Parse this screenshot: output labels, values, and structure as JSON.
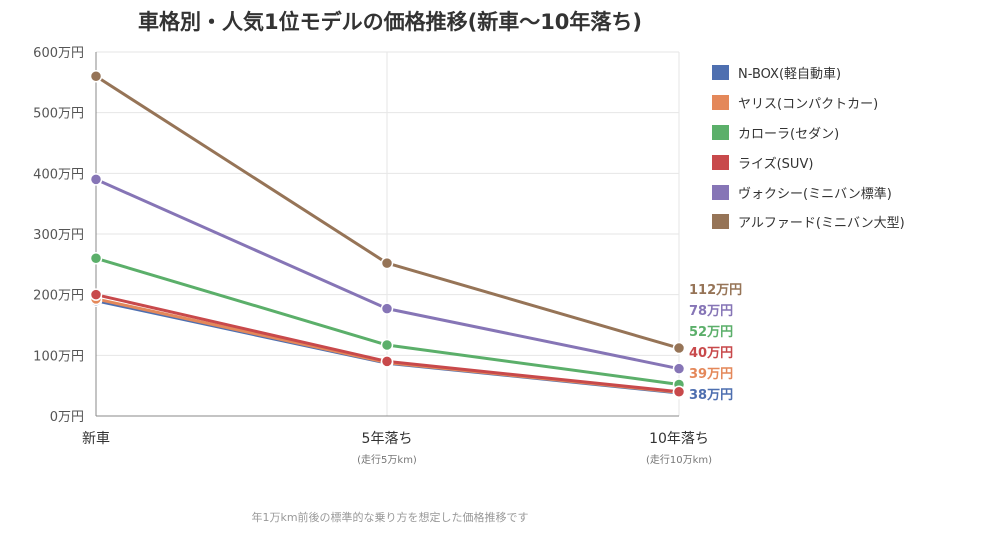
{
  "chart_data": {
    "type": "line",
    "title": "車格別・人気1位モデルの価格推移(新車〜10年落ち)",
    "categories": [
      "新車",
      "5年落ち",
      "10年落ち"
    ],
    "category_sublabels": [
      "",
      "(走行5万km)",
      "(走行10万km)"
    ],
    "ylim": [
      0,
      600
    ],
    "y_ticks": [
      {
        "value": 0,
        "label": "0万円"
      },
      {
        "value": 100,
        "label": "100万円"
      },
      {
        "value": 200,
        "label": "200万円"
      },
      {
        "value": 300,
        "label": "300万円"
      },
      {
        "value": 400,
        "label": "400万円"
      },
      {
        "value": 500,
        "label": "500万円"
      },
      {
        "value": 600,
        "label": "600万円"
      }
    ],
    "grid": true,
    "legend_position": "right",
    "series": [
      {
        "name": "N-BOX(軽自動車)",
        "color": "#4E6FB0",
        "values": [
          190,
          87,
          38
        ],
        "end_label": "38万円"
      },
      {
        "name": "ヤリス(コンパクトカー)",
        "color": "#E4885A",
        "values": [
          193,
          88,
          39
        ],
        "end_label": "39万円"
      },
      {
        "name": "カローラ(セダン)",
        "color": "#5BAF6A",
        "values": [
          260,
          117,
          52
        ],
        "end_label": "52万円"
      },
      {
        "name": "ライズ(SUV)",
        "color": "#C8494B",
        "values": [
          200,
          90,
          40
        ],
        "end_label": "40万円"
      },
      {
        "name": "ヴォクシー(ミニバン標準)",
        "color": "#8675B6",
        "values": [
          390,
          177,
          78
        ],
        "end_label": "78万円"
      },
      {
        "name": "アルファード(ミニバン大型)",
        "color": "#967457",
        "values": [
          560,
          252,
          112
        ],
        "end_label": "112万円"
      }
    ],
    "footnote": "年1万km前後の標準的な乗り方を想定した価格推移です"
  }
}
